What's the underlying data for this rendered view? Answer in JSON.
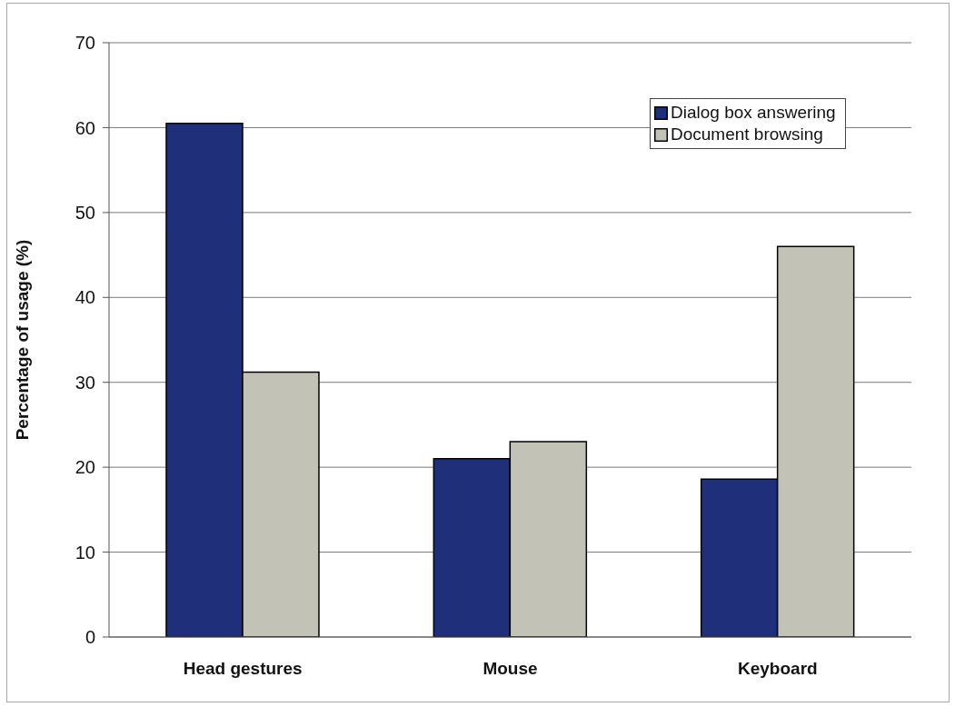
{
  "chart_data": {
    "type": "bar",
    "ylabel": "Percentage of usage (%)",
    "categories": [
      "Head gestures",
      "Mouse",
      "Keyboard"
    ],
    "series": [
      {
        "name": "Dialog box answering",
        "color": "#1f2f7a",
        "values": [
          60.5,
          21,
          18.6
        ]
      },
      {
        "name": "Document browsing",
        "color": "#c3c2b6",
        "values": [
          31.2,
          23,
          46
        ]
      }
    ],
    "ylim": [
      0,
      70
    ],
    "yticks": [
      0,
      10,
      20,
      30,
      40,
      50,
      60,
      70
    ],
    "grid": "y",
    "legend": "top right"
  }
}
